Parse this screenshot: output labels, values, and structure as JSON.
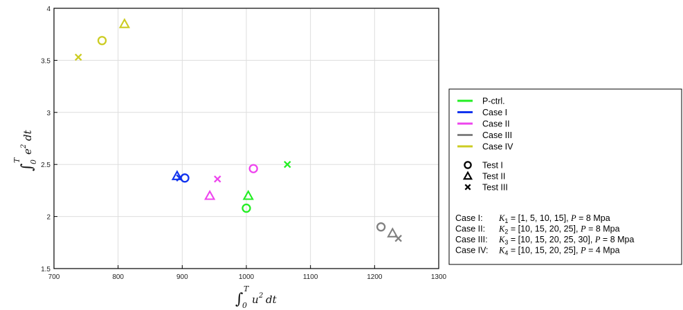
{
  "chart_data": {
    "type": "scatter",
    "xlabel": "∫₀ᵀ u² dt",
    "ylabel": "∫₀ᵀ e² dt",
    "xlim": [
      700,
      1300
    ],
    "ylim": [
      1.5,
      4
    ],
    "x_ticks": [
      "700",
      "800",
      "900",
      "1000",
      "1100",
      "1200",
      "1300"
    ],
    "y_ticks": [
      "1.5",
      "2",
      "2.5",
      "3",
      "3.5",
      "4"
    ],
    "grid": true,
    "legend_placement": "right, outside plot",
    "series": [
      {
        "name": "P-ctrl.",
        "color": "#22ee22",
        "points": [
          {
            "test": "Test I",
            "x": 1000,
            "y": 2.08
          },
          {
            "test": "Test II",
            "x": 1003,
            "y": 2.2
          },
          {
            "test": "Test III",
            "x": 1064,
            "y": 2.5
          }
        ]
      },
      {
        "name": "Case I",
        "color": "#1133ee",
        "points": [
          {
            "test": "Test I",
            "x": 904,
            "y": 2.37
          },
          {
            "test": "Test II",
            "x": 892,
            "y": 2.39
          },
          {
            "test": "Test III",
            "x": 896,
            "y": 2.37
          }
        ]
      },
      {
        "name": "Case II",
        "color": "#ee44ee",
        "points": [
          {
            "test": "Test I",
            "x": 1011,
            "y": 2.46
          },
          {
            "test": "Test II",
            "x": 943,
            "y": 2.2
          },
          {
            "test": "Test III",
            "x": 955,
            "y": 2.36
          }
        ]
      },
      {
        "name": "Case III",
        "color": "#808080",
        "points": [
          {
            "test": "Test I",
            "x": 1210,
            "y": 1.9
          },
          {
            "test": "Test II",
            "x": 1228,
            "y": 1.84
          },
          {
            "test": "Test III",
            "x": 1237,
            "y": 1.79
          }
        ]
      },
      {
        "name": "Case IV",
        "color": "#cccc22",
        "points": [
          {
            "test": "Test I",
            "x": 775,
            "y": 3.69
          },
          {
            "test": "Test II",
            "x": 810,
            "y": 3.85
          },
          {
            "test": "Test III",
            "x": 738,
            "y": 3.53
          }
        ]
      }
    ],
    "markers": [
      {
        "test": "Test I",
        "symbol": "circle"
      },
      {
        "test": "Test II",
        "symbol": "triangle"
      },
      {
        "test": "Test III",
        "symbol": "x"
      }
    ],
    "case_notes": [
      {
        "label": "Case I:",
        "k": "K",
        "sub": "1",
        "values": " = [1, 5, 10, 15], ",
        "p": "P",
        "pval": " = 8 Mpa"
      },
      {
        "label": "Case II:",
        "k": "K",
        "sub": "2",
        "values": " = [10, 15, 20, 25], ",
        "p": "P",
        "pval": " = 8 Mpa"
      },
      {
        "label": "Case III:",
        "k": "K",
        "sub": "3",
        "values": " = [10, 15, 20, 25, 30], ",
        "p": "P",
        "pval": " = 8 Mpa"
      },
      {
        "label": "Case IV:",
        "k": "K",
        "sub": "4",
        "values": " = [10, 15, 20, 25], ",
        "p": "P",
        "pval": " = 4 Mpa"
      }
    ]
  }
}
